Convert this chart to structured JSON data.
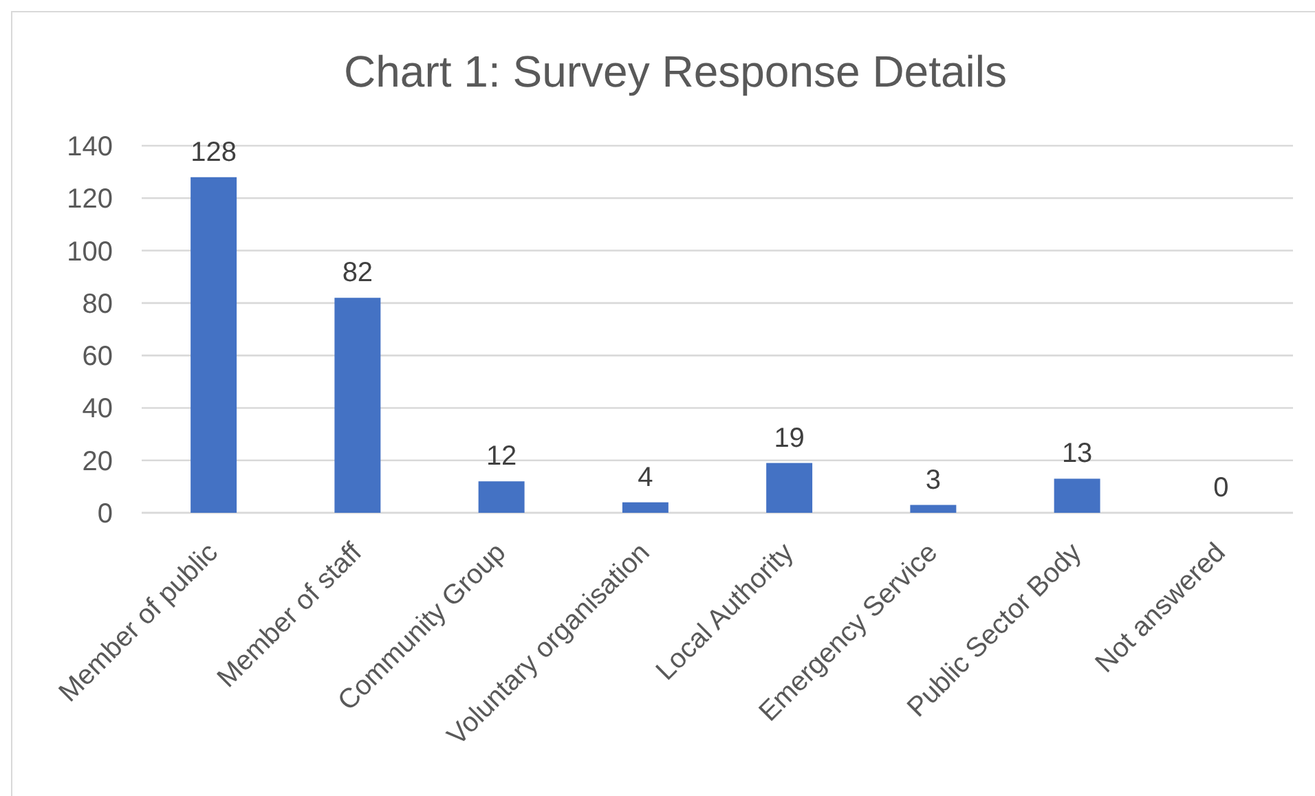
{
  "chart_data": {
    "type": "bar",
    "title": "Chart 1: Survey Response Details",
    "categories": [
      "Member of public",
      "Member of staff",
      "Community Group",
      "Voluntary organisation",
      "Local Authority",
      "Emergency Service",
      "Public Sector Body",
      "Not answered"
    ],
    "values": [
      128,
      82,
      12,
      4,
      19,
      3,
      13,
      0
    ],
    "color": "#4472c4",
    "ylim": [
      0,
      140
    ],
    "yticks": [
      0,
      20,
      40,
      60,
      80,
      100,
      120,
      140
    ],
    "grid": "y",
    "data_labels": true
  }
}
